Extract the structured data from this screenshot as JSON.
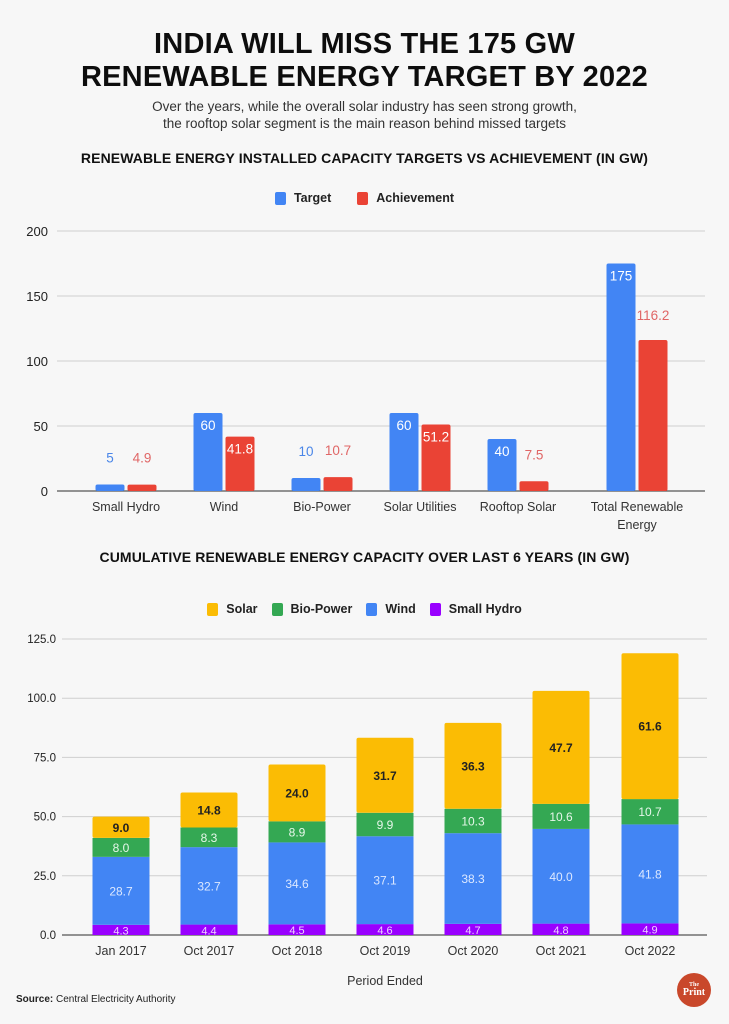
{
  "header": {
    "title_line1": "INDIA WILL MISS THE 175 GW",
    "title_line2": "RENEWABLE ENERGY TARGET BY 2022",
    "subtitle_line1": "Over the years, while the overall solar industry has seen strong growth,",
    "subtitle_line2": "the rooftop solar segment is the main reason behind missed targets"
  },
  "colors": {
    "target": "#4285f4",
    "achievement": "#ea4335",
    "solar": "#fbbc04",
    "bio_power": "#34a853",
    "wind": "#4285f4",
    "small_hydro": "#9900ff",
    "target_label": "#4a86e8",
    "achievement_label": "#e06666"
  },
  "chart_data": [
    {
      "type": "bar",
      "title": "RENEWABLE ENERGY INSTALLED CAPACITY TARGETS VS ACHIEVEMENT (IN GW)",
      "xlabel": "",
      "ylabel": "",
      "ylim": [
        0,
        200
      ],
      "yticks": [
        "0",
        "50",
        "100",
        "150",
        "200"
      ],
      "ytick_values": [
        0,
        50,
        100,
        150,
        200
      ],
      "grid": true,
      "legend_position": "top-center",
      "categories": [
        "Small Hydro",
        "Wind",
        "Bio-Power",
        "Solar Utilities",
        "Rooftop Solar",
        "Total Renewable Energy"
      ],
      "category_labels": [
        [
          "Small Hydro"
        ],
        [
          "Wind"
        ],
        [
          "Bio-Power"
        ],
        [
          "Solar Utilities"
        ],
        [
          "Rooftop Solar"
        ],
        [
          "Total Renewable",
          "Energy"
        ]
      ],
      "series": [
        {
          "name": "Target",
          "values": [
            5,
            60,
            10,
            60,
            40,
            175
          ],
          "labels": [
            "5",
            "60",
            "10",
            "60",
            "40",
            "175"
          ]
        },
        {
          "name": "Achievement",
          "values": [
            4.9,
            41.8,
            10.7,
            51.2,
            7.5,
            116.2
          ],
          "labels": [
            "4.9",
            "41.8",
            "10.7",
            "51.2",
            "7.5",
            "116.2"
          ]
        }
      ]
    },
    {
      "type": "bar",
      "stacked": true,
      "title": "CUMULATIVE RENEWABLE ENERGY CAPACITY OVER LAST 6 YEARS (IN GW)",
      "xlabel": "Period Ended",
      "ylabel": "",
      "ylim": [
        0,
        125
      ],
      "yticks": [
        "0.0",
        "25.0",
        "50.0",
        "75.0",
        "100.0",
        "125.0"
      ],
      "ytick_values": [
        0,
        25,
        50,
        75,
        100,
        125
      ],
      "grid": true,
      "legend_position": "top-center",
      "categories": [
        "Jan 2017",
        "Oct 2017",
        "Oct 2018",
        "Oct 2019",
        "Oct 2020",
        "Oct 2021",
        "Oct 2022"
      ],
      "legend_order": [
        "Solar",
        "Bio-Power",
        "Wind",
        "Small Hydro"
      ],
      "series": [
        {
          "name": "Small Hydro",
          "values": [
            4.3,
            4.4,
            4.5,
            4.6,
            4.7,
            4.8,
            4.9
          ],
          "labels": [
            "4.3",
            "4.4",
            "4.5",
            "4.6",
            "4.7",
            "4.8",
            "4.9"
          ]
        },
        {
          "name": "Wind",
          "values": [
            28.7,
            32.7,
            34.6,
            37.1,
            38.3,
            40.0,
            41.8
          ],
          "labels": [
            "28.7",
            "32.7",
            "34.6",
            "37.1",
            "38.3",
            "40.0",
            "41.8"
          ]
        },
        {
          "name": "Bio-Power",
          "values": [
            8.0,
            8.3,
            8.9,
            9.9,
            10.3,
            10.6,
            10.7
          ],
          "labels": [
            "8.0",
            "8.3",
            "8.9",
            "9.9",
            "10.3",
            "10.6",
            "10.7"
          ]
        },
        {
          "name": "Solar",
          "values": [
            9.0,
            14.8,
            24.0,
            31.7,
            36.3,
            47.7,
            61.6
          ],
          "labels": [
            "9.0",
            "14.8",
            "24.0",
            "31.7",
            "36.3",
            "47.7",
            "61.6"
          ]
        }
      ]
    }
  ],
  "footer": {
    "source_label": "Source:",
    "source_text": "Central Electricity Authority",
    "logo_the": "The",
    "logo_print": "Print"
  }
}
